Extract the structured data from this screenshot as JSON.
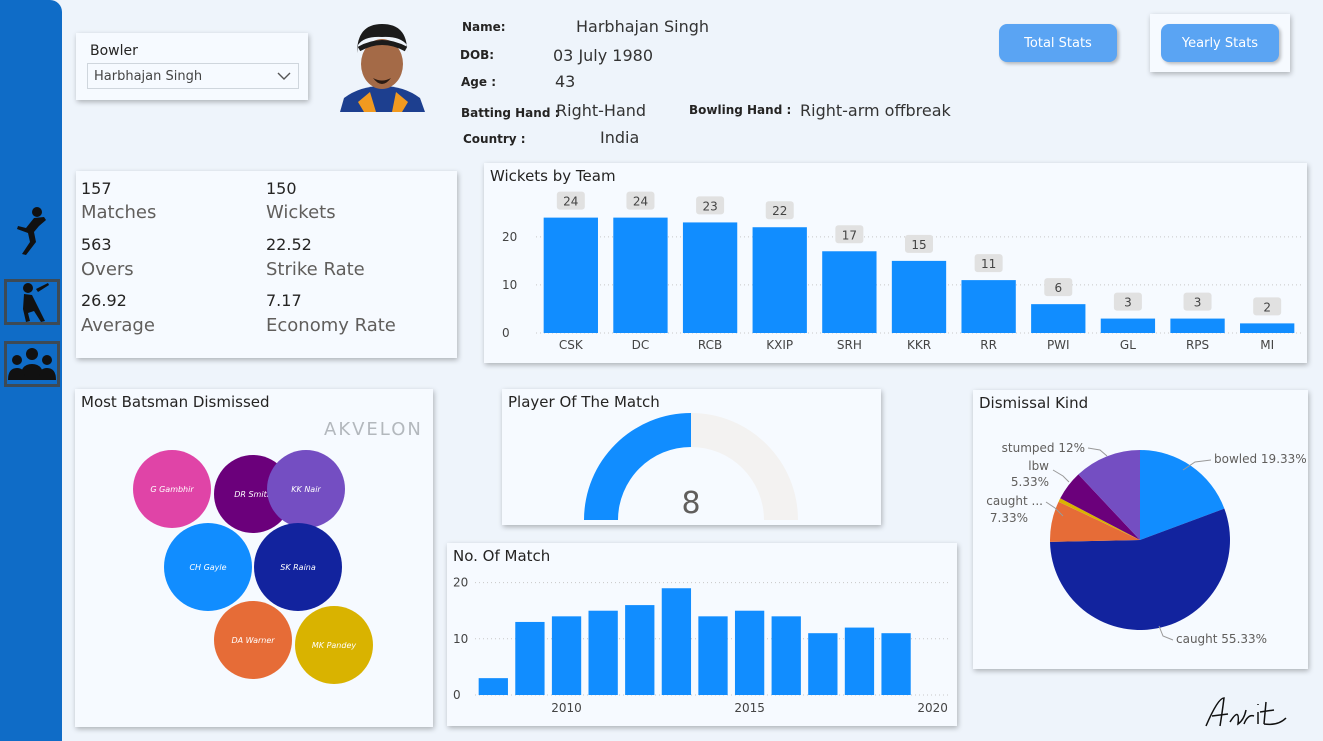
{
  "slicer": {
    "label": "Bowler",
    "value": "Harbhajan Singh"
  },
  "player": {
    "name_label": "Name:",
    "name": "Harbhajan Singh",
    "dob_label": "DOB:",
    "dob": "03 July 1980",
    "age_label": "Age :",
    "age": "43",
    "batting_label": "Batting Hand :",
    "batting": "Right-Hand",
    "bowling_label": "Bowling Hand :",
    "bowling": "Right-arm offbreak",
    "country_label": "Country :",
    "country": "India"
  },
  "buttons": {
    "total": "Total Stats",
    "yearly": "Yearly Stats"
  },
  "kpis": {
    "matches": {
      "value": "157",
      "label": "Matches"
    },
    "wickets": {
      "value": "150",
      "label": "Wickets"
    },
    "overs": {
      "value": "563",
      "label": "Overs"
    },
    "strike_rate": {
      "value": "22.52",
      "label": "Strike Rate"
    },
    "average": {
      "value": "26.92",
      "label": "Average"
    },
    "economy": {
      "value": "7.17",
      "label": "Economy Rate"
    }
  },
  "titles": {
    "wickets_by_team": "Wickets by Team",
    "batsman": "Most Batsman Dismissed",
    "potm": "Player Of The Match",
    "matches": "No. Of Match",
    "dismissal": "Dismissal Kind"
  },
  "watermark": "AKVELON",
  "signature": "Adrit",
  "chart_data": [
    {
      "type": "bar",
      "title": "Wickets by Team",
      "categories": [
        "CSK",
        "DC",
        "RCB",
        "KXIP",
        "SRH",
        "KKR",
        "RR",
        "PWI",
        "GL",
        "RPS",
        "MI"
      ],
      "values": [
        24,
        24,
        23,
        22,
        17,
        15,
        11,
        6,
        3,
        3,
        2
      ],
      "yticks": [
        0,
        10,
        20
      ],
      "ylim": [
        0,
        26
      ],
      "color": "#118dff",
      "data_labels": true
    },
    {
      "type": "bubble",
      "title": "Most Batsman Dismissed",
      "items": [
        {
          "name": "G Gambhir",
          "color": "#e044a7"
        },
        {
          "name": "DR Smith",
          "color": "#6b007b"
        },
        {
          "name": "KK Nair",
          "color": "#744ec2"
        },
        {
          "name": "CH Gayle",
          "color": "#118dff"
        },
        {
          "name": "SK Raina",
          "color": "#12239e"
        },
        {
          "name": "DA Warner",
          "color": "#e66c37"
        },
        {
          "name": "MK Pandey",
          "color": "#d9b300"
        }
      ]
    },
    {
      "type": "gauge",
      "title": "Player Of The Match",
      "value": 8,
      "min": 0,
      "max": 16,
      "color": "#118dff",
      "track_color": "#f3f2f1"
    },
    {
      "type": "bar",
      "title": "No. Of Match",
      "x": [
        2008,
        2009,
        2010,
        2011,
        2012,
        2013,
        2014,
        2015,
        2016,
        2017,
        2018,
        2019
      ],
      "values": [
        3,
        13,
        14,
        15,
        16,
        19,
        14,
        15,
        14,
        11,
        12,
        11
      ],
      "xticks": [
        2010,
        2015,
        2020
      ],
      "xlim": [
        2007.5,
        2020.5
      ],
      "yticks": [
        0,
        10,
        20
      ],
      "ylim": [
        0,
        21
      ],
      "color": "#118dff"
    },
    {
      "type": "pie",
      "title": "Dismissal Kind",
      "slices": [
        {
          "label": "bowled",
          "value": 19.33,
          "color": "#118dff",
          "text": "bowled 19.33%"
        },
        {
          "label": "caught",
          "value": 55.33,
          "color": "#12239e",
          "text": "caught 55.33%"
        },
        {
          "label": "caught ...",
          "value": 7.33,
          "color": "#e66c37",
          "text": "caught ... 7.33%"
        },
        {
          "label": "other",
          "value": 0.67,
          "color": "#d9b300",
          "text": ""
        },
        {
          "label": "lbw",
          "value": 5.33,
          "color": "#6b007b",
          "text": "lbw 5.33%"
        },
        {
          "label": "stumped",
          "value": 12,
          "color": "#744ec2",
          "text": "stumped 12%"
        }
      ]
    }
  ]
}
